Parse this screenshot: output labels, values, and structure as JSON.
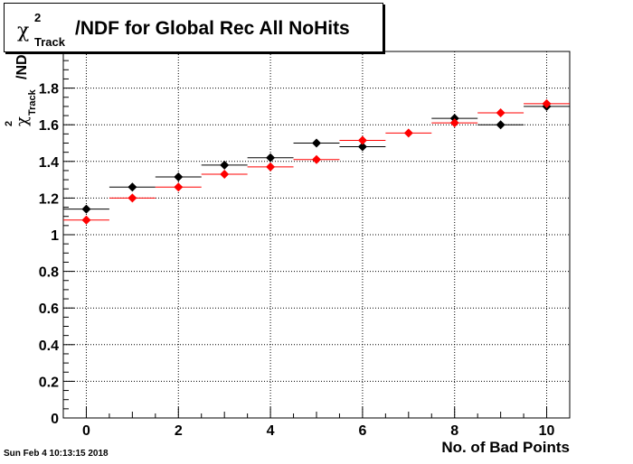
{
  "chart_data": {
    "type": "scatter",
    "title_parts": {
      "chi": "χ",
      "sup": "2",
      "sub": "Track",
      "rest": "/NDF for Global Rec All NoHits"
    },
    "xlabel": "No. of Bad Points",
    "ylabel_parts": {
      "chi": "χ",
      "sup": "2",
      "sub": "Track",
      "rest": "/ND"
    },
    "xlim": [
      -0.5,
      10.5
    ],
    "ylim": [
      0,
      2.0
    ],
    "xticks": [
      0,
      2,
      4,
      6,
      8,
      10
    ],
    "yticks": [
      0,
      0.2,
      0.4,
      0.6,
      0.8,
      1,
      1.2,
      1.4,
      1.6,
      1.8
    ],
    "grid": true,
    "bin_width": 1,
    "series": [
      {
        "color": "#000000",
        "x": [
          0,
          1,
          2,
          3,
          4,
          5,
          6,
          7,
          8,
          9,
          10
        ],
        "y": [
          1.14,
          1.26,
          1.315,
          1.38,
          1.42,
          1.5,
          1.48,
          null,
          1.635,
          1.6,
          1.7
        ]
      },
      {
        "color": "#ff0000",
        "x": [
          0,
          1,
          2,
          3,
          4,
          5,
          6,
          7,
          8,
          9,
          10
        ],
        "y": [
          1.08,
          1.2,
          1.26,
          1.33,
          1.37,
          1.41,
          1.515,
          1.555,
          1.61,
          1.665,
          1.715
        ]
      }
    ]
  },
  "timestamp": "Sun Feb  4 10:13:15 2018"
}
